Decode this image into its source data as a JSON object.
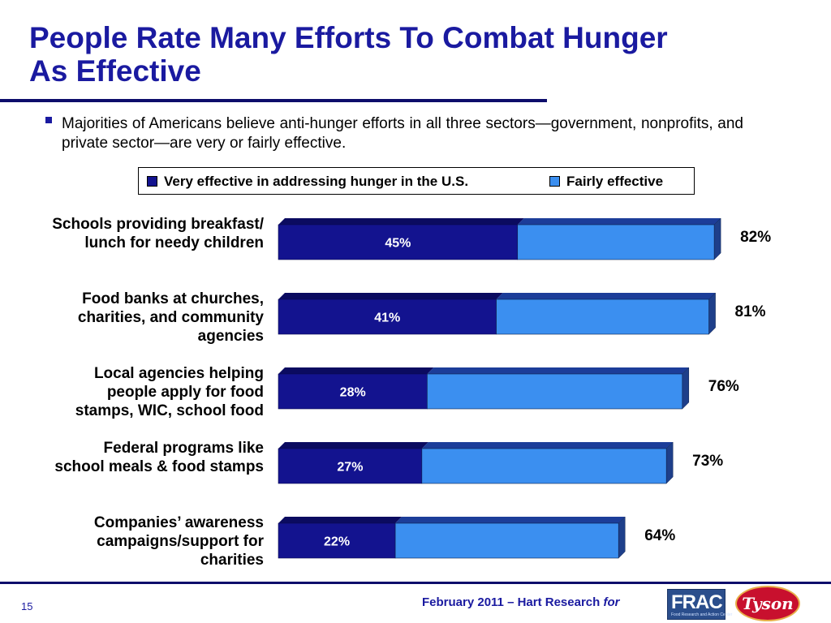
{
  "slide": {
    "title_line1": "People Rate Many Efforts To Combat Hunger",
    "title_line2": "As Effective",
    "bullet": "Majorities of Americans believe anti-hunger efforts in all three sectors—government, nonprofits, and private sector—are very or fairly effective.",
    "page_number": "15",
    "footer_text": "February 2011 – Hart Research",
    "footer_for": "for",
    "logos": {
      "frac": "FRAC",
      "frac_sub": "Food Research and Action Center",
      "tyson": "Tyson"
    }
  },
  "colors": {
    "very": "#13138f",
    "very_top": "#0b0b60",
    "fairly": "#3b8ff0",
    "fairly_top": "#1c3d99",
    "fairly_side": "#1e3f8a",
    "title": "#1a1aa0"
  },
  "chart_data": {
    "type": "bar",
    "orientation": "horizontal",
    "stacked": true,
    "legend": [
      {
        "name": "Very effective in addressing hunger in the U.S.",
        "color": "#13138f"
      },
      {
        "name": "Fairly effective",
        "color": "#3b8ff0"
      }
    ],
    "categories": [
      "Schools providing breakfast/\nlunch for needy children",
      "Food banks at churches,\ncharities, and community\nagencies",
      "Local agencies helping\npeople apply for food\nstamps, WIC, school food",
      "Federal programs like\nschool meals & food stamps",
      "Companies’ awareness\ncampaigns/support for\ncharities"
    ],
    "very_effective": [
      45,
      41,
      28,
      27,
      22
    ],
    "fairly_effective": [
      37,
      40,
      48,
      46,
      42
    ],
    "very_labels": [
      "45%",
      "41%",
      "28%",
      "27%",
      "22%"
    ],
    "total_labels": [
      "82%",
      "81%",
      "76%",
      "73%",
      "64%"
    ]
  }
}
